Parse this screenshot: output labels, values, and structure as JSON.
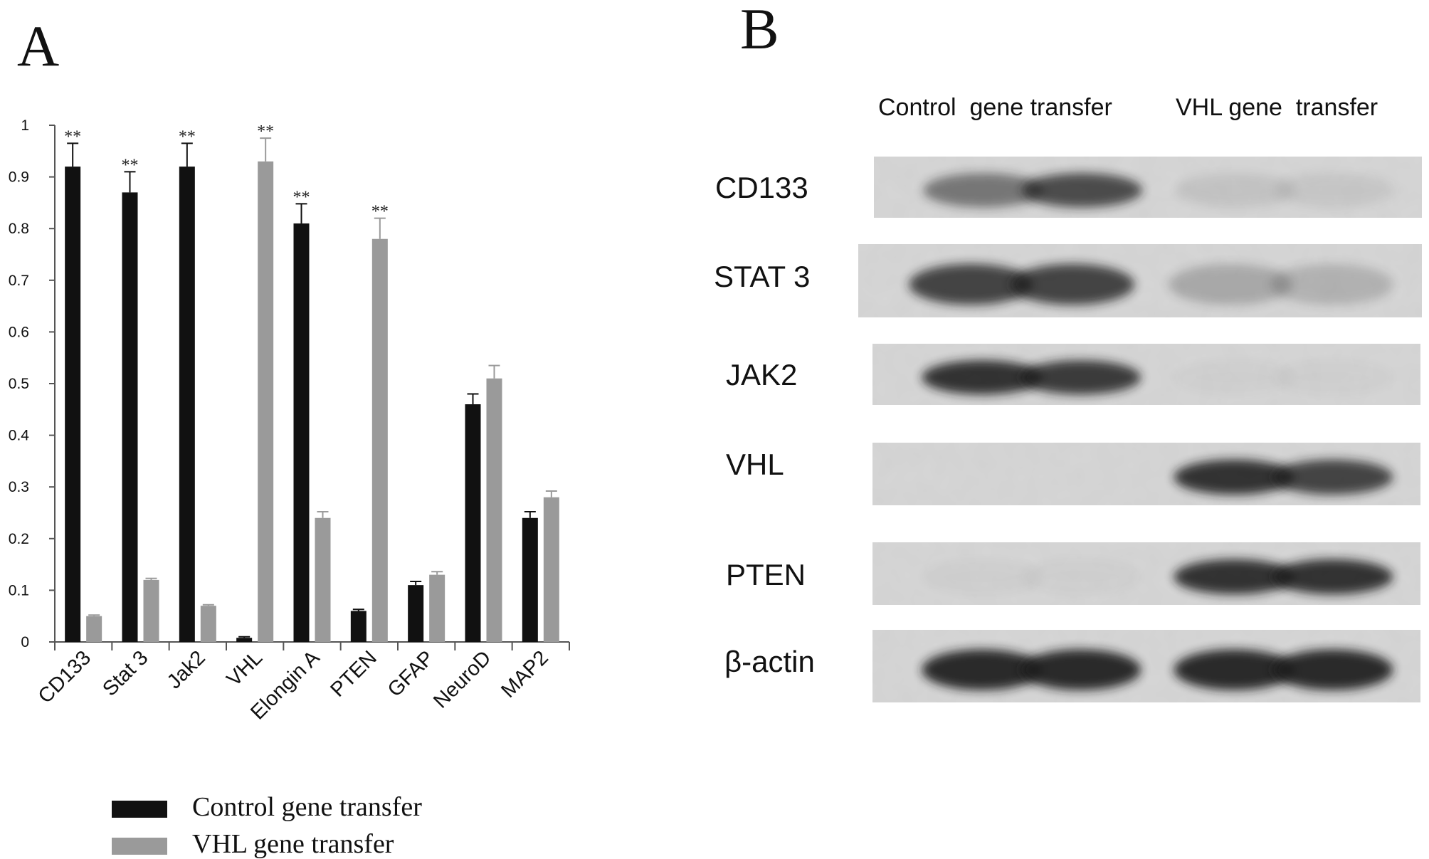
{
  "panels": {
    "a_letter": "A",
    "b_letter": "B"
  },
  "colors": {
    "control": "#111111",
    "vhl": "#9a9a9a",
    "axis": "#555555",
    "blot_bg": "#d6d6d6",
    "band": "#1c1c1c"
  },
  "chart_data": {
    "type": "bar",
    "title": "",
    "xlabel": "",
    "ylabel": "",
    "ylim": [
      0,
      1
    ],
    "yticks": [
      "0",
      "0.1",
      "0.2",
      "0.3",
      "0.4",
      "0.5",
      "0.6",
      "0.7",
      "0.8",
      "0.9",
      "1"
    ],
    "categories": [
      "CD133",
      "Stat 3",
      "Jak2",
      "VHL",
      "Elongin A",
      "PTEN",
      "GFAP",
      "NeuroD",
      "MAP2"
    ],
    "series": [
      {
        "name": "Control gene transfer",
        "values": [
          0.92,
          0.87,
          0.92,
          0.008,
          0.81,
          0.06,
          0.11,
          0.46,
          0.24
        ],
        "errors": [
          0.045,
          0.04,
          0.045,
          0.002,
          0.038,
          0.003,
          0.007,
          0.02,
          0.012
        ]
      },
      {
        "name": "VHL gene transfer",
        "values": [
          0.05,
          0.12,
          0.07,
          0.93,
          0.24,
          0.78,
          0.13,
          0.51,
          0.28
        ],
        "errors": [
          0.002,
          0.003,
          0.002,
          0.045,
          0.012,
          0.04,
          0.006,
          0.025,
          0.012
        ]
      }
    ],
    "annotations": [
      {
        "category": "CD133",
        "series": 0,
        "text": "**"
      },
      {
        "category": "Stat 3",
        "series": 0,
        "text": "**"
      },
      {
        "category": "Jak2",
        "series": 0,
        "text": "**"
      },
      {
        "category": "VHL",
        "series": 1,
        "text": "**"
      },
      {
        "category": "Elongin A",
        "series": 0,
        "text": "**"
      },
      {
        "category": "PTEN",
        "series": 1,
        "text": "**"
      }
    ],
    "legend": {
      "placement": "bottom",
      "entries": [
        "Control gene transfer",
        "VHL gene transfer"
      ]
    },
    "grid": false
  },
  "blot": {
    "headers": [
      "Control  gene transfer",
      "VHL gene  transfer"
    ],
    "rows": [
      {
        "label": "CD133",
        "control": [
          0.55,
          0.8
        ],
        "vhl": [
          0.1,
          0.08
        ]
      },
      {
        "label": "STAT 3",
        "control": [
          0.85,
          0.85
        ],
        "vhl": [
          0.25,
          0.2
        ]
      },
      {
        "label": "JAK2",
        "control": [
          0.95,
          0.9
        ],
        "vhl": [
          0.03,
          0.03
        ]
      },
      {
        "label": "VHL",
        "control": [
          0.0,
          0.0
        ],
        "vhl": [
          0.95,
          0.85
        ]
      },
      {
        "label": "PTEN",
        "control": [
          0.03,
          0.03
        ],
        "vhl": [
          0.95,
          0.95
        ]
      },
      {
        "label": "β-actin",
        "control": [
          1.0,
          1.0
        ],
        "vhl": [
          1.0,
          1.0
        ]
      }
    ]
  }
}
